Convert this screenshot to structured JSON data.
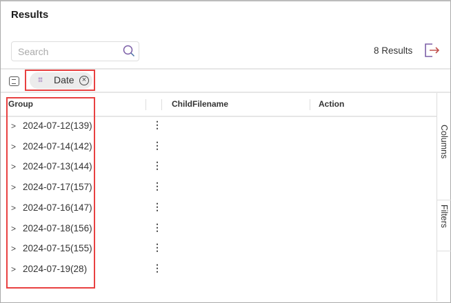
{
  "header": {
    "title": "Results",
    "results_count": "8 Results"
  },
  "search": {
    "placeholder": "Search",
    "value": ""
  },
  "toolbar": {
    "group_chip": "Date",
    "chip_remove": "×"
  },
  "columns": [
    "Group",
    "ChildFilename",
    "Action"
  ],
  "rows": [
    {
      "label": "2024-07-12(139)"
    },
    {
      "label": "2024-07-14(142)"
    },
    {
      "label": "2024-07-13(144)"
    },
    {
      "label": "2024-07-17(157)"
    },
    {
      "label": "2024-07-16(147)"
    },
    {
      "label": "2024-07-18(156)"
    },
    {
      "label": "2024-07-15(155)"
    },
    {
      "label": "2024-07-19(28)"
    }
  ],
  "side_panel": {
    "columns": "Columns",
    "filters": "Filters"
  },
  "colors": {
    "accent": "#7b5ea7",
    "highlight": "#e84040"
  },
  "icons": {
    "search": "search-icon",
    "export": "export-icon",
    "grip": "drag-grip-icon",
    "remove": "close-circle-icon",
    "expand": "chevron-right-icon",
    "menu": "kebab-menu-icon"
  }
}
